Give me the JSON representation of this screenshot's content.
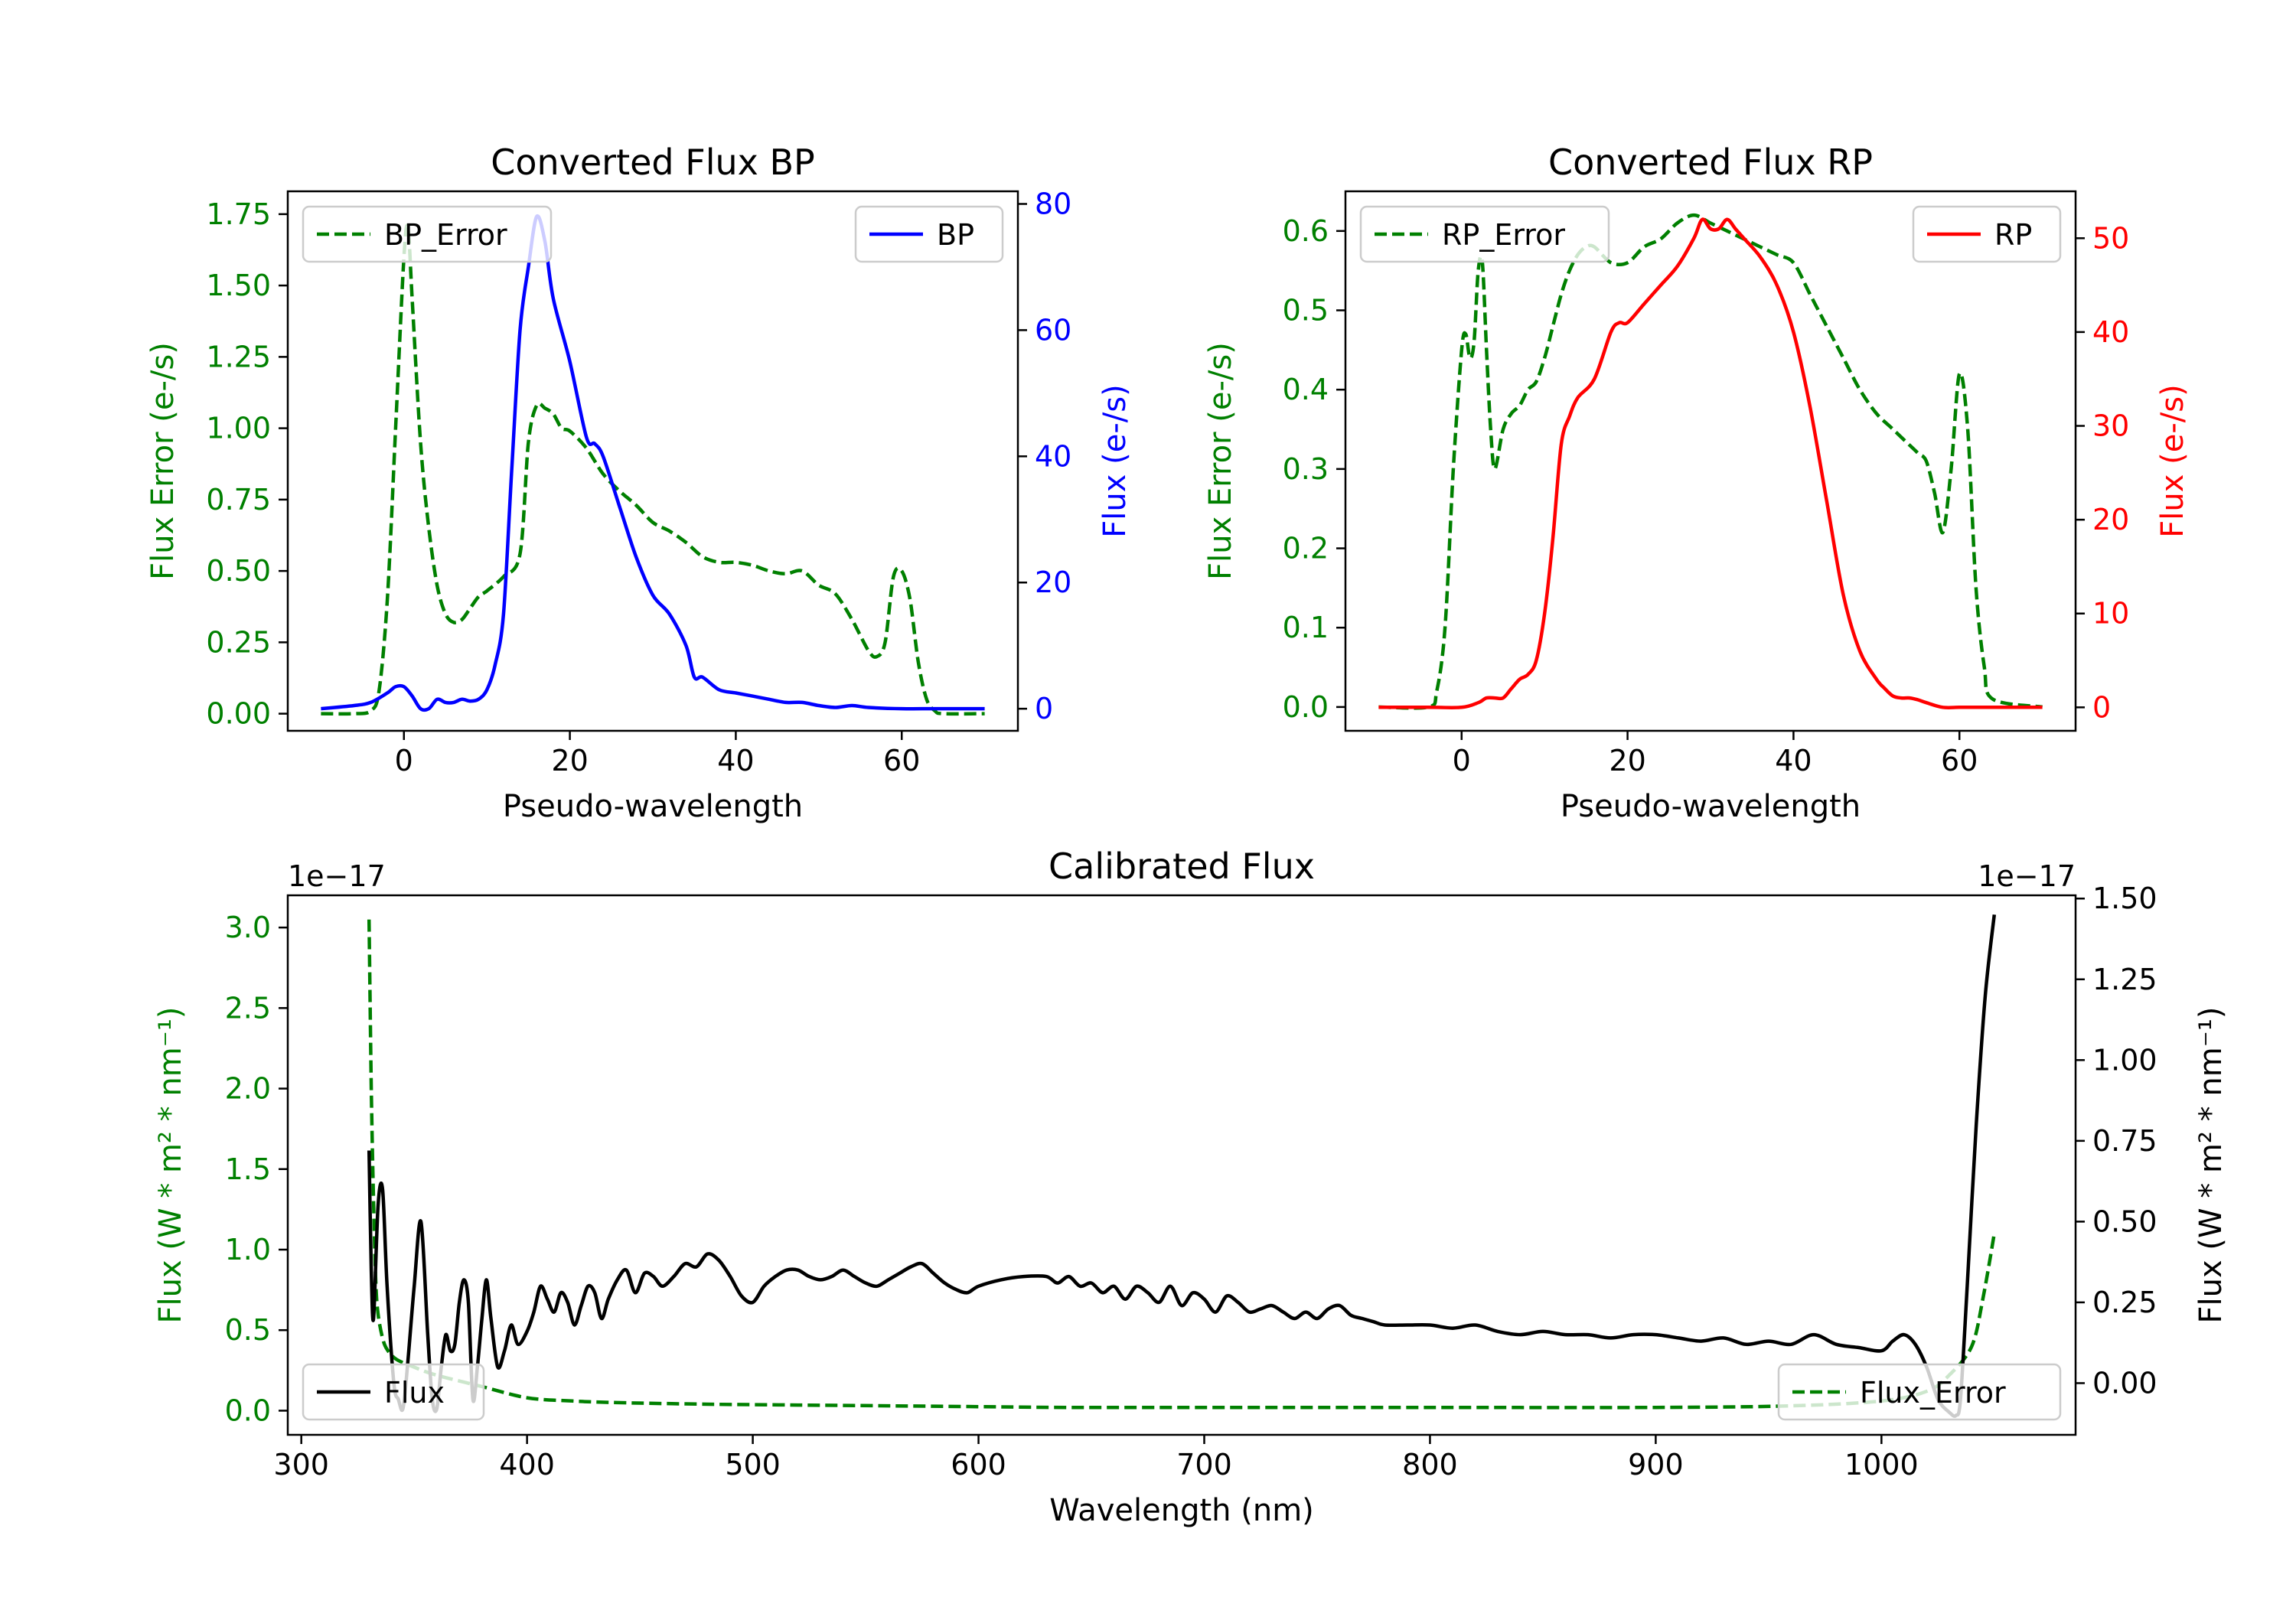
{
  "colors": {
    "error": "#008000",
    "bp": "#0000ff",
    "rp": "#ff0000",
    "flux": "#000000",
    "axis": "#000000"
  },
  "chart_data": [
    {
      "id": "bp",
      "type": "line",
      "title": "Converted Flux BP",
      "xlabel": "Pseudo-wavelength",
      "ylabel_left": "Flux Error (e-/s)",
      "ylabel_right": "Flux (e-/s)",
      "xlim": [
        -14,
        74
      ],
      "ylim_left": [
        -0.06,
        1.83
      ],
      "ylim_right": [
        -3.5,
        82
      ],
      "xticks": [
        0,
        20,
        40,
        60
      ],
      "yticks_left": [
        0.0,
        0.25,
        0.5,
        0.75,
        1.0,
        1.25,
        1.5,
        1.75
      ],
      "yticks_left_labels": [
        "0.00",
        "0.25",
        "0.50",
        "0.75",
        "1.00",
        "1.25",
        "1.50",
        "1.75"
      ],
      "yticks_right": [
        0,
        20,
        40,
        60,
        80
      ],
      "yticks_right_labels": [
        "0",
        "20",
        "40",
        "60",
        "80"
      ],
      "legend_left": {
        "label": "BP_Error",
        "position": "upper left"
      },
      "legend_right": {
        "label": "BP",
        "position": "upper right"
      },
      "series": [
        {
          "name": "BP_Error",
          "axis": "left",
          "style": "dashed",
          "color": "#008000",
          "x": [
            -10,
            -6,
            -4,
            -3,
            -2,
            -1,
            0,
            0.5,
            1,
            2,
            3,
            4,
            5,
            6,
            7,
            8,
            9,
            10,
            12,
            14,
            15,
            16,
            17,
            18,
            19,
            20,
            22,
            24,
            26,
            28,
            30,
            32,
            34,
            36,
            38,
            40,
            42,
            44,
            46,
            48,
            50,
            52,
            54,
            56,
            57,
            58,
            59,
            60,
            61,
            62,
            63,
            64,
            65,
            70
          ],
          "y": [
            0.0,
            0.0,
            0.01,
            0.08,
            0.4,
            1.0,
            1.6,
            1.7,
            1.45,
            0.95,
            0.65,
            0.45,
            0.35,
            0.32,
            0.33,
            0.37,
            0.41,
            0.43,
            0.48,
            0.56,
            0.95,
            1.08,
            1.07,
            1.05,
            1.0,
            0.99,
            0.93,
            0.84,
            0.78,
            0.73,
            0.67,
            0.64,
            0.6,
            0.55,
            0.53,
            0.53,
            0.52,
            0.5,
            0.49,
            0.5,
            0.45,
            0.42,
            0.33,
            0.22,
            0.2,
            0.25,
            0.48,
            0.5,
            0.4,
            0.18,
            0.05,
            0.01,
            0.0,
            0.0
          ]
        },
        {
          "name": "BP",
          "axis": "right",
          "style": "solid",
          "color": "#0000ff",
          "x": [
            -10,
            -6,
            -4,
            -2,
            -1,
            0,
            1,
            2,
            3,
            4,
            5,
            6,
            7,
            8,
            9,
            10,
            11,
            12,
            13,
            14,
            15,
            16,
            17,
            18,
            20,
            22,
            23,
            24,
            26,
            28,
            30,
            32,
            34,
            35,
            36,
            38,
            40,
            42,
            44,
            46,
            48,
            50,
            52,
            54,
            56,
            60,
            64,
            70
          ],
          "y": [
            0,
            0.5,
            1,
            2.5,
            3.5,
            3.5,
            2,
            0,
            0,
            1.5,
            1,
            1,
            1.5,
            1.2,
            1.5,
            3,
            7,
            15,
            38,
            60,
            70,
            78,
            74,
            65,
            55,
            43,
            42,
            40,
            32,
            24,
            18,
            15,
            10,
            5,
            5,
            3,
            2.5,
            2,
            1.5,
            1,
            1,
            0.5,
            0.2,
            0.5,
            0.2,
            0,
            0,
            0
          ]
        }
      ]
    },
    {
      "id": "rp",
      "type": "line",
      "title": "Converted Flux RP",
      "xlabel": "Pseudo-wavelength",
      "ylabel_left": "Flux Error (e-/s)",
      "ylabel_right": "Flux (e-/s)",
      "xlim": [
        -14,
        74
      ],
      "ylim_left": [
        -0.03,
        0.65
      ],
      "ylim_right": [
        -2.5,
        55
      ],
      "xticks": [
        0,
        20,
        40,
        60
      ],
      "yticks_left": [
        0.0,
        0.1,
        0.2,
        0.3,
        0.4,
        0.5,
        0.6
      ],
      "yticks_left_labels": [
        "0.0",
        "0.1",
        "0.2",
        "0.3",
        "0.4",
        "0.5",
        "0.6"
      ],
      "yticks_right": [
        0,
        10,
        20,
        30,
        40,
        50
      ],
      "yticks_right_labels": [
        "0",
        "10",
        "20",
        "30",
        "40",
        "50"
      ],
      "legend_left": {
        "label": "RP_Error",
        "position": "upper left"
      },
      "legend_right": {
        "label": "RP",
        "position": "upper right"
      },
      "series": [
        {
          "name": "RP_Error",
          "axis": "left",
          "style": "dashed",
          "color": "#008000",
          "x": [
            -10,
            -4,
            -3,
            -2,
            -1,
            0,
            0.5,
            1,
            1.5,
            2,
            2.5,
            3,
            3.5,
            4,
            5,
            6,
            7,
            8,
            9,
            10,
            11,
            12,
            13,
            14,
            15,
            16,
            18,
            20,
            22,
            24,
            26,
            28,
            30,
            32,
            34,
            36,
            38,
            40,
            42,
            44,
            46,
            48,
            50,
            52,
            54,
            55,
            56,
            57,
            58,
            59,
            60,
            61,
            62,
            63,
            64,
            70
          ],
          "y": [
            0.0,
            0.0,
            0.02,
            0.1,
            0.3,
            0.45,
            0.47,
            0.44,
            0.46,
            0.55,
            0.56,
            0.45,
            0.35,
            0.3,
            0.35,
            0.37,
            0.38,
            0.4,
            0.41,
            0.44,
            0.48,
            0.52,
            0.55,
            0.57,
            0.58,
            0.58,
            0.56,
            0.56,
            0.58,
            0.59,
            0.61,
            0.62,
            0.61,
            0.6,
            0.59,
            0.58,
            0.57,
            0.56,
            0.52,
            0.48,
            0.44,
            0.4,
            0.37,
            0.35,
            0.33,
            0.32,
            0.31,
            0.27,
            0.22,
            0.3,
            0.42,
            0.35,
            0.15,
            0.05,
            0.01,
            0.0
          ]
        },
        {
          "name": "RP",
          "axis": "right",
          "style": "solid",
          "color": "#ff0000",
          "x": [
            -10,
            -4,
            0,
            2,
            3,
            4,
            5,
            6,
            7,
            8,
            9,
            10,
            11,
            12,
            13,
            14,
            16,
            18,
            19,
            20,
            22,
            24,
            26,
            28,
            29,
            30,
            31,
            32,
            33,
            34,
            36,
            38,
            40,
            42,
            44,
            46,
            48,
            50,
            51,
            52,
            53,
            54,
            55,
            56,
            58,
            60,
            62,
            70
          ],
          "y": [
            0,
            0,
            0,
            0.5,
            1,
            1,
            1,
            2,
            3,
            3.5,
            5,
            10,
            18,
            28,
            31,
            33,
            35,
            40,
            41,
            41,
            43,
            45,
            47,
            50,
            52,
            51,
            51,
            52,
            51,
            50,
            48,
            45,
            40,
            32,
            22,
            12,
            6,
            3,
            2,
            1.2,
            1,
            1,
            0.8,
            0.5,
            0,
            0,
            0,
            0
          ]
        }
      ]
    },
    {
      "id": "calibrated",
      "type": "line",
      "title": "Calibrated Flux",
      "xlabel": "Wavelength (nm)",
      "ylabel_left": "Flux (W * m² * nm⁻¹)",
      "ylabel_right": "Flux (W * m² * nm⁻¹)",
      "offset_left": "1e−17",
      "offset_right": "1e−17",
      "xlim": [
        294,
        1086
      ],
      "ylim_left": [
        -0.15,
        3.2
      ],
      "ylim_right": [
        -0.16,
        1.51
      ],
      "xticks": [
        300,
        400,
        500,
        600,
        700,
        800,
        900,
        1000
      ],
      "yticks_left": [
        0.0,
        0.5,
        1.0,
        1.5,
        2.0,
        2.5,
        3.0
      ],
      "yticks_left_labels": [
        "0.0",
        "0.5",
        "1.0",
        "1.5",
        "2.0",
        "2.5",
        "3.0"
      ],
      "yticks_right": [
        0.0,
        0.25,
        0.5,
        0.75,
        1.0,
        1.25,
        1.5
      ],
      "yticks_right_labels": [
        "0.00",
        "0.25",
        "0.50",
        "0.75",
        "1.00",
        "1.25",
        "1.50"
      ],
      "legend_left": {
        "label": "Flux",
        "position": "lower left"
      },
      "legend_right": {
        "label": "Flux_Error",
        "position": "lower right"
      },
      "series": [
        {
          "name": "Flux_Error",
          "axis": "left",
          "style": "dashed",
          "color": "#008000",
          "x": [
            330,
            331,
            332,
            333,
            334,
            336,
            338,
            342,
            350,
            360,
            380,
            400,
            420,
            440,
            480,
            520,
            560,
            600,
            640,
            700,
            800,
            900,
            960,
            1000,
            1020,
            1030,
            1040,
            1045,
            1050
          ],
          "y": [
            3.05,
            2.0,
            1.3,
            0.8,
            0.6,
            0.45,
            0.38,
            0.32,
            0.27,
            0.22,
            0.15,
            0.08,
            0.06,
            0.05,
            0.04,
            0.035,
            0.03,
            0.025,
            0.02,
            0.02,
            0.02,
            0.02,
            0.03,
            0.06,
            0.12,
            0.22,
            0.4,
            0.7,
            1.1
          ]
        },
        {
          "name": "Flux",
          "axis": "right",
          "style": "solid",
          "color": "#000000",
          "x": [
            330,
            331,
            332,
            334,
            336,
            338,
            341,
            343,
            345,
            347,
            350,
            353,
            356,
            358,
            360,
            362,
            364,
            366,
            368,
            370,
            372,
            374,
            376,
            378,
            380,
            382,
            384,
            387,
            390,
            393,
            396,
            400,
            403,
            406,
            409,
            412,
            415,
            418,
            421,
            424,
            427,
            430,
            433,
            436,
            440,
            444,
            448,
            452,
            456,
            460,
            465,
            470,
            475,
            480,
            485,
            490,
            495,
            500,
            505,
            510,
            515,
            520,
            525,
            530,
            535,
            540,
            545,
            550,
            555,
            560,
            565,
            570,
            575,
            580,
            585,
            590,
            595,
            600,
            610,
            620,
            630,
            635,
            640,
            645,
            650,
            655,
            660,
            665,
            670,
            675,
            680,
            685,
            690,
            695,
            700,
            705,
            710,
            715,
            720,
            725,
            730,
            735,
            740,
            745,
            750,
            755,
            760,
            765,
            770,
            775,
            780,
            790,
            800,
            810,
            820,
            830,
            840,
            850,
            860,
            870,
            880,
            890,
            900,
            910,
            920,
            930,
            940,
            950,
            960,
            970,
            980,
            990,
            1000,
            1005,
            1010,
            1015,
            1020,
            1025,
            1030,
            1033,
            1035,
            1038,
            1042,
            1046,
            1050
          ],
          "y": [
            0.72,
            0.35,
            0.2,
            0.55,
            0.6,
            0.3,
            0.0,
            -0.05,
            -0.08,
            0.05,
            0.3,
            0.5,
            0.15,
            -0.05,
            -0.08,
            0.05,
            0.15,
            0.1,
            0.12,
            0.25,
            0.32,
            0.25,
            -0.05,
            0.05,
            0.2,
            0.32,
            0.2,
            0.05,
            0.1,
            0.18,
            0.12,
            0.16,
            0.22,
            0.3,
            0.26,
            0.22,
            0.28,
            0.25,
            0.18,
            0.24,
            0.3,
            0.28,
            0.2,
            0.26,
            0.32,
            0.35,
            0.28,
            0.34,
            0.33,
            0.3,
            0.33,
            0.37,
            0.36,
            0.4,
            0.38,
            0.33,
            0.27,
            0.25,
            0.3,
            0.33,
            0.35,
            0.35,
            0.33,
            0.32,
            0.33,
            0.35,
            0.33,
            0.31,
            0.3,
            0.32,
            0.34,
            0.36,
            0.37,
            0.34,
            0.31,
            0.29,
            0.28,
            0.3,
            0.32,
            0.33,
            0.33,
            0.31,
            0.33,
            0.3,
            0.31,
            0.28,
            0.3,
            0.26,
            0.3,
            0.28,
            0.25,
            0.3,
            0.24,
            0.28,
            0.26,
            0.22,
            0.27,
            0.25,
            0.22,
            0.23,
            0.24,
            0.22,
            0.2,
            0.22,
            0.2,
            0.23,
            0.24,
            0.21,
            0.2,
            0.19,
            0.18,
            0.18,
            0.18,
            0.17,
            0.18,
            0.16,
            0.15,
            0.16,
            0.15,
            0.15,
            0.14,
            0.15,
            0.15,
            0.14,
            0.13,
            0.14,
            0.12,
            0.13,
            0.12,
            0.15,
            0.12,
            0.11,
            0.1,
            0.13,
            0.15,
            0.12,
            0.05,
            -0.05,
            -0.09,
            -0.1,
            -0.05,
            0.3,
            0.8,
            1.2,
            1.45
          ]
        }
      ]
    }
  ]
}
